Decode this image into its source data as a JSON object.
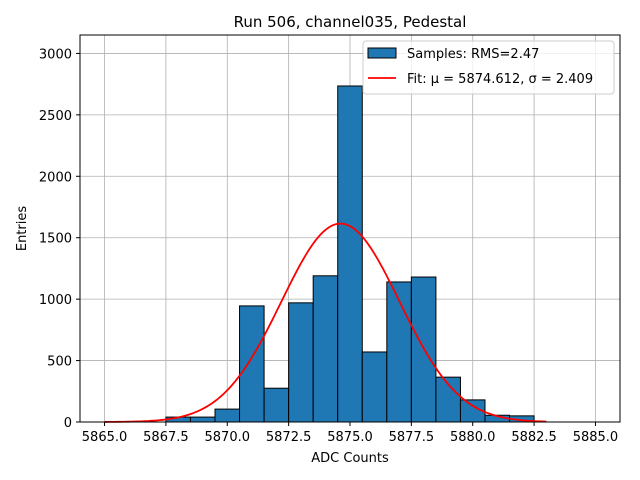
{
  "chart_data": {
    "type": "bar",
    "title": "Run 506, channel035, Pedestal",
    "xlabel": "ADC Counts",
    "ylabel": "Entries",
    "xlim": [
      5864.0,
      5886.0
    ],
    "ylim": [
      0,
      3150
    ],
    "xticks": [
      "5865.0",
      "5867.5",
      "5870.0",
      "5872.5",
      "5875.0",
      "5877.5",
      "5880.0",
      "5882.5",
      "5885.0"
    ],
    "yticks": [
      "0",
      "500",
      "1000",
      "1500",
      "2000",
      "2500",
      "3000"
    ],
    "grid": true,
    "legend_position": "top-right",
    "histogram": {
      "name": "Samples: RMS=2.47",
      "color": "#1f77b4",
      "edgecolor": "#000000",
      "bins": [
        {
          "x0": 5867.5,
          "x1": 5868.5,
          "value": 40
        },
        {
          "x0": 5868.5,
          "x1": 5869.5,
          "value": 40
        },
        {
          "x0": 5869.5,
          "x1": 5870.5,
          "value": 105
        },
        {
          "x0": 5870.5,
          "x1": 5871.5,
          "value": 945
        },
        {
          "x0": 5871.5,
          "x1": 5872.5,
          "value": 275
        },
        {
          "x0": 5872.5,
          "x1": 5873.5,
          "value": 970
        },
        {
          "x0": 5873.5,
          "x1": 5874.5,
          "value": 1190
        },
        {
          "x0": 5874.5,
          "x1": 5875.5,
          "value": 2735
        },
        {
          "x0": 5875.5,
          "x1": 5876.5,
          "value": 570
        },
        {
          "x0": 5876.5,
          "x1": 5877.5,
          "value": 1140
        },
        {
          "x0": 5877.5,
          "x1": 5878.5,
          "value": 1180
        },
        {
          "x0": 5878.5,
          "x1": 5879.5,
          "value": 365
        },
        {
          "x0": 5879.5,
          "x1": 5880.5,
          "value": 180
        },
        {
          "x0": 5880.5,
          "x1": 5881.5,
          "value": 55
        },
        {
          "x0": 5881.5,
          "x1": 5882.5,
          "value": 50
        }
      ]
    },
    "fit": {
      "name": "Fit: μ = 5874.612, σ = 2.409",
      "color": "#ff0000",
      "amplitude": 1615,
      "mu": 5874.612,
      "sigma": 2.409,
      "x_range": [
        5865.0,
        5883.0
      ]
    }
  }
}
